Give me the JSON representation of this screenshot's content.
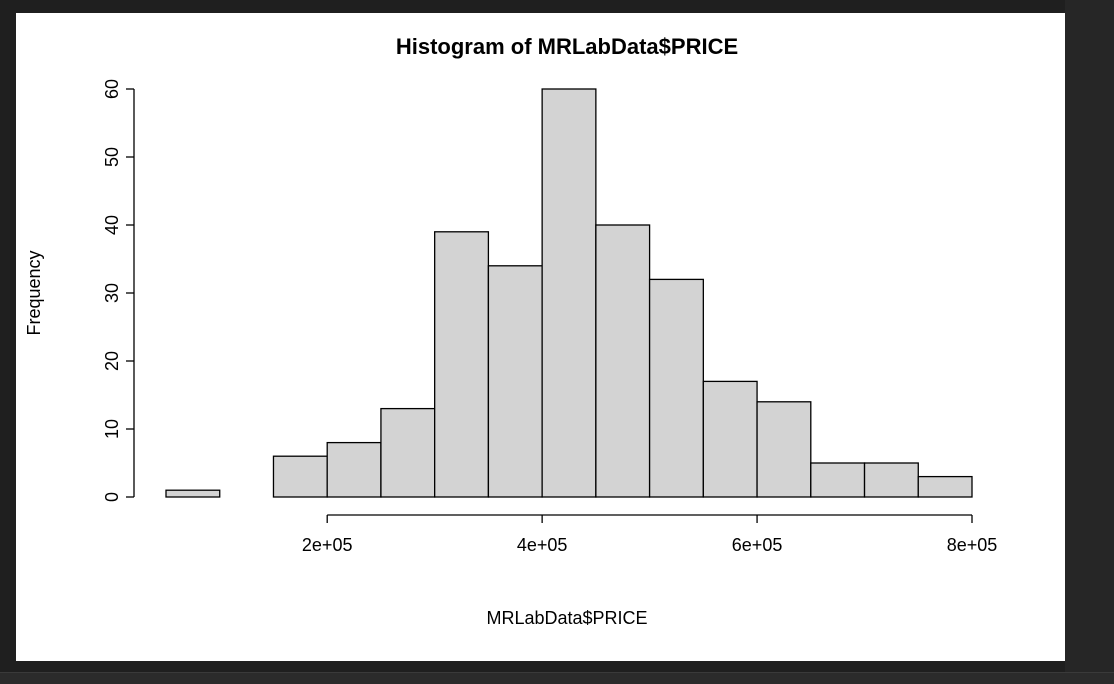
{
  "chart_data": {
    "type": "bar",
    "title": "Histogram of MRLabData$PRICE",
    "xlabel": "MRLabData$PRICE",
    "ylabel": "Frequency",
    "bins": [
      {
        "start": 50000,
        "end": 100000,
        "count": 1
      },
      {
        "start": 100000,
        "end": 150000,
        "count": 0
      },
      {
        "start": 150000,
        "end": 200000,
        "count": 6
      },
      {
        "start": 200000,
        "end": 250000,
        "count": 8
      },
      {
        "start": 250000,
        "end": 300000,
        "count": 13
      },
      {
        "start": 300000,
        "end": 350000,
        "count": 39
      },
      {
        "start": 350000,
        "end": 400000,
        "count": 34
      },
      {
        "start": 400000,
        "end": 450000,
        "count": 60
      },
      {
        "start": 450000,
        "end": 500000,
        "count": 40
      },
      {
        "start": 500000,
        "end": 550000,
        "count": 32
      },
      {
        "start": 550000,
        "end": 600000,
        "count": 17
      },
      {
        "start": 600000,
        "end": 650000,
        "count": 14
      },
      {
        "start": 650000,
        "end": 700000,
        "count": 5
      },
      {
        "start": 700000,
        "end": 750000,
        "count": 5
      },
      {
        "start": 750000,
        "end": 800000,
        "count": 3
      }
    ],
    "x_ticks": [
      {
        "value": 200000,
        "label": "2e+05"
      },
      {
        "value": 400000,
        "label": "4e+05"
      },
      {
        "value": 600000,
        "label": "6e+05"
      },
      {
        "value": 800000,
        "label": "8e+05"
      }
    ],
    "y_ticks": [
      {
        "value": 0,
        "label": "0"
      },
      {
        "value": 10,
        "label": "10"
      },
      {
        "value": 20,
        "label": "20"
      },
      {
        "value": 30,
        "label": "30"
      },
      {
        "value": 40,
        "label": "40"
      },
      {
        "value": 50,
        "label": "50"
      },
      {
        "value": 60,
        "label": "60"
      }
    ],
    "xlim": [
      50000,
      800000
    ],
    "ylim": [
      0,
      60
    ],
    "bar_fill": "#d3d3d3",
    "bar_stroke": "#000000",
    "grid": false
  }
}
